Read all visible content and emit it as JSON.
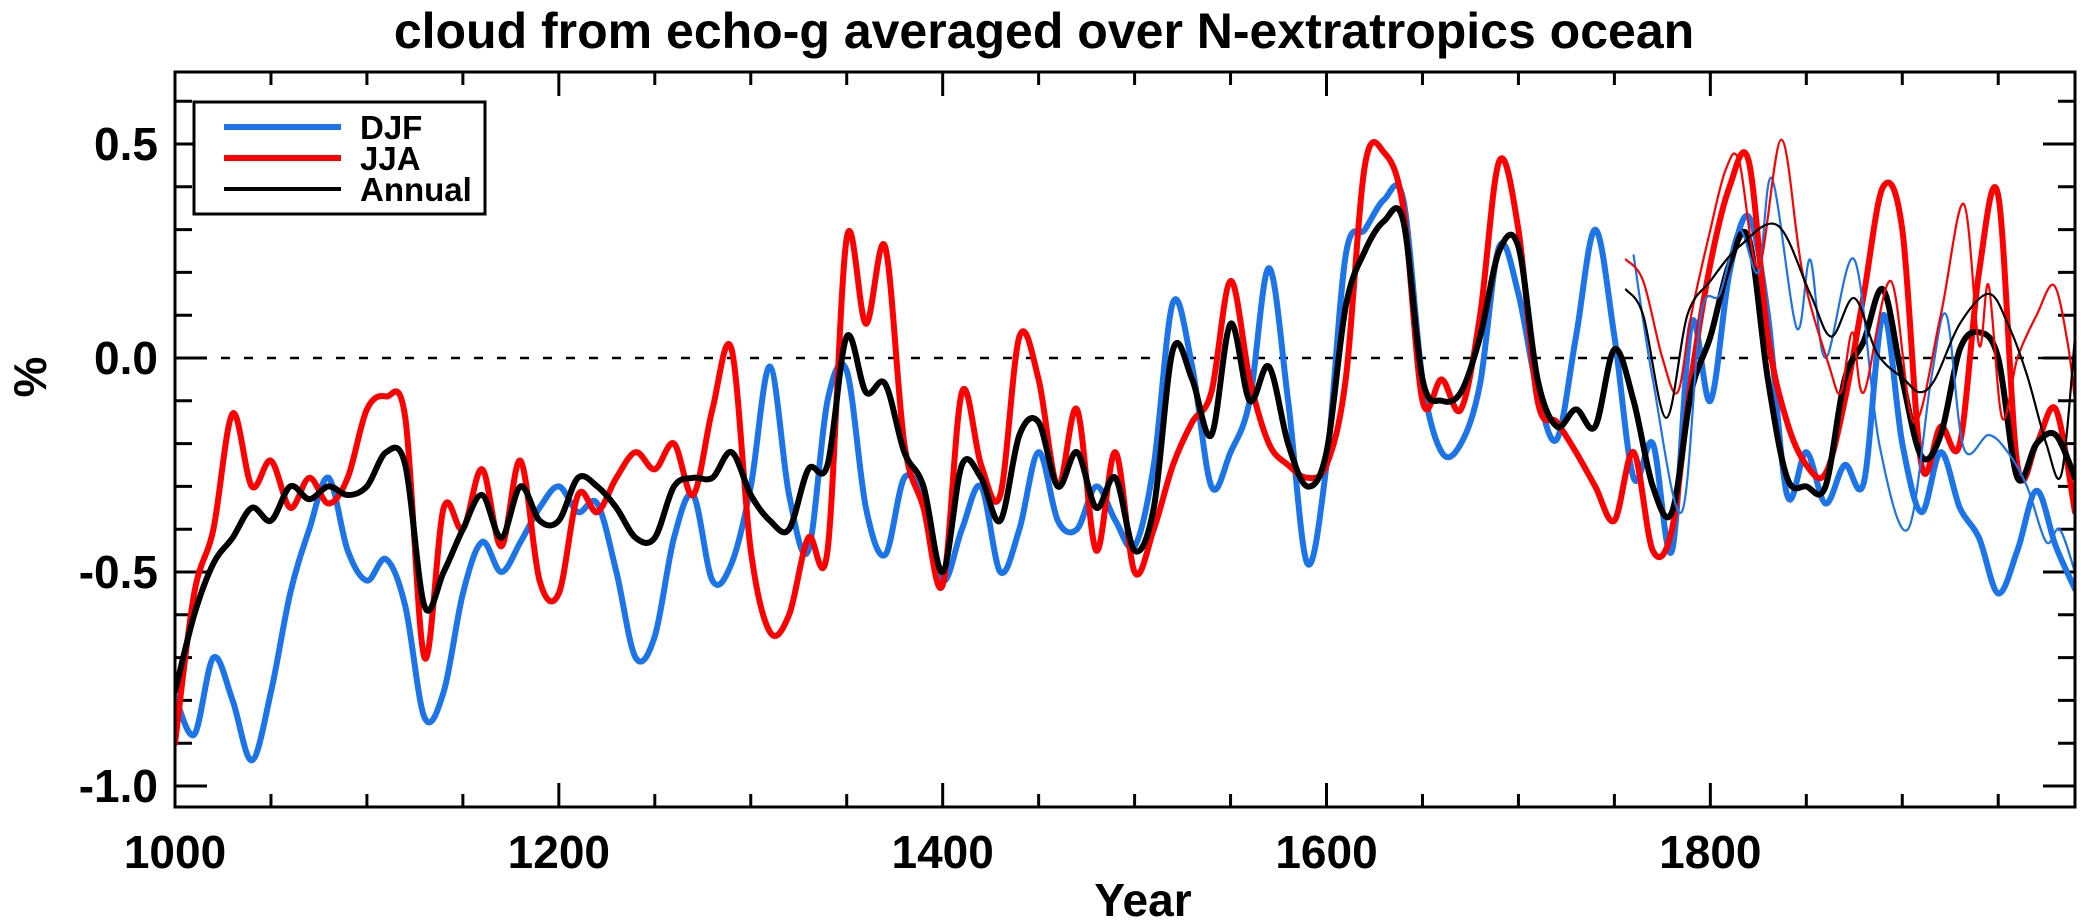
{
  "title": "cloud from echo-g averaged over N-extratropics ocean",
  "axes": {
    "xlabel": "Year",
    "ylabel": "%",
    "x_range": [
      1000,
      1990
    ],
    "x_major_ticks": [
      1000,
      1200,
      1400,
      1600,
      1800
    ],
    "x_major_labels": [
      "1000",
      "1200",
      "1400",
      "1600",
      "1800"
    ],
    "x_minor_step": 50,
    "y_range": [
      -1.049,
      0.668
    ],
    "y_major_ticks": [
      0.5,
      0.0,
      -0.5,
      -1.0
    ],
    "y_major_labels": [
      "0.5",
      "0.0",
      "-0.5",
      "-1.0"
    ],
    "y_minor_step": 0.1,
    "zero_reference_line": 0.0,
    "grid": "off",
    "frame": "boxed with inward ticks on all four sides"
  },
  "legend": {
    "position": "top-left inside plot",
    "items": [
      {
        "label": "DJF",
        "color": "#1B74E8",
        "weight": "thick"
      },
      {
        "label": "JJA",
        "color": "#FF0000",
        "weight": "thick"
      },
      {
        "label": "Annual",
        "color": "#000000",
        "weight": "thick"
      }
    ]
  },
  "colors": {
    "djf": "#1B74E8",
    "jja": "#FF0000",
    "annual": "#000000",
    "frame": "#000000",
    "background": "#FFFFFF"
  },
  "chart_data": {
    "type": "line",
    "title": "cloud from echo-g averaged over N-extratropics ocean",
    "xlabel": "Year",
    "ylabel": "%",
    "xlim": [
      1000,
      1990
    ],
    "ylim": [
      -1.049,
      0.668
    ],
    "legend_position": "upper left",
    "description": "Cloud-cover anomaly (%) from the ECHO-G millennium simulation averaged over Northern-extratropics ocean; ~30-yr smoothed seasonal (DJF, JJA) and Annual means. Thin lines from ~1755 onward show a second (historical) realization.",
    "series": [
      {
        "name": "DJF",
        "style": "thick",
        "color": "#1B74E8",
        "x_start": 1000,
        "x_step": 10,
        "values": [
          -0.79,
          -0.88,
          -0.7,
          -0.8,
          -0.94,
          -0.78,
          -0.55,
          -0.4,
          -0.28,
          -0.45,
          -0.52,
          -0.47,
          -0.58,
          -0.84,
          -0.78,
          -0.55,
          -0.43,
          -0.5,
          -0.43,
          -0.35,
          -0.3,
          -0.36,
          -0.34,
          -0.5,
          -0.7,
          -0.65,
          -0.42,
          -0.32,
          -0.52,
          -0.48,
          -0.3,
          -0.02,
          -0.32,
          -0.45,
          -0.1,
          -0.03,
          -0.35,
          -0.46,
          -0.28,
          -0.33,
          -0.52,
          -0.4,
          -0.3,
          -0.5,
          -0.4,
          -0.22,
          -0.38,
          -0.4,
          -0.3,
          -0.38,
          -0.44,
          -0.25,
          0.13,
          -0.02,
          -0.3,
          -0.22,
          -0.1,
          0.21,
          -0.1,
          -0.48,
          -0.25,
          0.24,
          0.3,
          0.37,
          0.37,
          -0.05,
          -0.22,
          -0.2,
          -0.06,
          0.26,
          0.15,
          -0.08,
          -0.19,
          0.05,
          0.3,
          0.05,
          -0.28,
          -0.2,
          -0.45,
          0.08,
          -0.1,
          0.2,
          0.33,
          0.1,
          -0.32,
          -0.22,
          -0.34,
          -0.25,
          -0.29,
          0.1,
          -0.2,
          -0.36,
          -0.22,
          -0.35,
          -0.42,
          -0.55,
          -0.45,
          -0.31,
          -0.44,
          -0.54
        ]
      },
      {
        "name": "JJA",
        "style": "thick",
        "color": "#FF0000",
        "x_start": 1000,
        "x_step": 10,
        "values": [
          -0.9,
          -0.55,
          -0.4,
          -0.13,
          -0.3,
          -0.24,
          -0.35,
          -0.28,
          -0.34,
          -0.28,
          -0.12,
          -0.09,
          -0.14,
          -0.7,
          -0.35,
          -0.4,
          -0.26,
          -0.44,
          -0.24,
          -0.52,
          -0.55,
          -0.32,
          -0.36,
          -0.28,
          -0.22,
          -0.26,
          -0.2,
          -0.32,
          -0.12,
          0.02,
          -0.45,
          -0.64,
          -0.6,
          -0.42,
          -0.45,
          0.28,
          0.08,
          0.26,
          -0.2,
          -0.35,
          -0.53,
          -0.08,
          -0.25,
          -0.32,
          0.05,
          -0.05,
          -0.3,
          -0.12,
          -0.45,
          -0.22,
          -0.5,
          -0.4,
          -0.25,
          -0.15,
          -0.08,
          0.18,
          -0.05,
          -0.2,
          -0.25,
          -0.28,
          -0.25,
          -0.05,
          0.45,
          0.48,
          0.35,
          -0.1,
          -0.05,
          -0.12,
          0.1,
          0.46,
          0.3,
          -0.1,
          -0.15,
          -0.22,
          -0.3,
          -0.38,
          -0.22,
          -0.45,
          -0.4,
          -0.05,
          0.22,
          0.4,
          0.46,
          0.05,
          -0.15,
          -0.25,
          -0.27,
          -0.1,
          0.15,
          0.4,
          0.3,
          -0.25,
          -0.16,
          -0.2,
          0.2,
          0.38,
          -0.25,
          -0.2,
          -0.12,
          -0.36
        ]
      },
      {
        "name": "Annual",
        "style": "thick",
        "color": "#000000",
        "x_start": 1000,
        "x_step": 10,
        "values": [
          -0.78,
          -0.6,
          -0.48,
          -0.42,
          -0.35,
          -0.38,
          -0.3,
          -0.33,
          -0.3,
          -0.32,
          -0.3,
          -0.22,
          -0.25,
          -0.58,
          -0.5,
          -0.4,
          -0.32,
          -0.42,
          -0.3,
          -0.38,
          -0.38,
          -0.28,
          -0.3,
          -0.35,
          -0.42,
          -0.42,
          -0.3,
          -0.28,
          -0.28,
          -0.22,
          -0.32,
          -0.38,
          -0.4,
          -0.26,
          -0.25,
          0.05,
          -0.08,
          -0.06,
          -0.22,
          -0.3,
          -0.5,
          -0.25,
          -0.28,
          -0.38,
          -0.18,
          -0.15,
          -0.3,
          -0.22,
          -0.35,
          -0.28,
          -0.45,
          -0.35,
          0.02,
          -0.05,
          -0.18,
          0.08,
          -0.1,
          -0.02,
          -0.2,
          -0.3,
          -0.22,
          0.12,
          0.25,
          0.32,
          0.32,
          -0.05,
          -0.1,
          -0.08,
          0.05,
          0.25,
          0.26,
          -0.05,
          -0.16,
          -0.12,
          -0.16,
          0.02,
          -0.1,
          -0.3,
          -0.36,
          -0.08,
          0.05,
          0.22,
          0.28,
          -0.05,
          -0.28,
          -0.3,
          -0.3,
          -0.05,
          0.04,
          0.16,
          -0.05,
          -0.23,
          -0.18,
          0.02,
          0.06,
          0.0,
          -0.28,
          -0.2,
          -0.18,
          -0.28
        ]
      },
      {
        "name": "DJF (thin, second realization)",
        "style": "thin",
        "color": "#1B74E8",
        "points": [
          [
            1760,
            0.24
          ],
          [
            1770,
            -0.05
          ],
          [
            1785,
            -0.36
          ],
          [
            1795,
            0.1
          ],
          [
            1805,
            0.15
          ],
          [
            1815,
            0.3
          ],
          [
            1825,
            0.2
          ],
          [
            1832,
            0.42
          ],
          [
            1845,
            0.07
          ],
          [
            1852,
            0.23
          ],
          [
            1860,
            0.0
          ],
          [
            1875,
            0.23
          ],
          [
            1888,
            -0.2
          ],
          [
            1903,
            -0.4
          ],
          [
            1915,
            -0.05
          ],
          [
            1923,
            0.1
          ],
          [
            1932,
            -0.21
          ],
          [
            1945,
            -0.18
          ],
          [
            1955,
            -0.22
          ],
          [
            1965,
            -0.3
          ],
          [
            1975,
            -0.43
          ],
          [
            1982,
            -0.4
          ],
          [
            1990,
            -0.5
          ]
        ]
      },
      {
        "name": "JJA (thin, second realization)",
        "style": "thin",
        "color": "#FF0000",
        "points": [
          [
            1756,
            0.23
          ],
          [
            1765,
            0.18
          ],
          [
            1775,
            0.0
          ],
          [
            1783,
            -0.08
          ],
          [
            1790,
            0.1
          ],
          [
            1800,
            0.3
          ],
          [
            1808,
            0.44
          ],
          [
            1815,
            0.46
          ],
          [
            1825,
            0.21
          ],
          [
            1837,
            0.51
          ],
          [
            1848,
            0.2
          ],
          [
            1862,
            -0.02
          ],
          [
            1868,
            -0.08
          ],
          [
            1874,
            0.06
          ],
          [
            1880,
            -0.08
          ],
          [
            1894,
            0.18
          ],
          [
            1906,
            -0.15
          ],
          [
            1920,
            0.1
          ],
          [
            1932,
            0.36
          ],
          [
            1940,
            0.03
          ],
          [
            1945,
            0.17
          ],
          [
            1952,
            -0.14
          ],
          [
            1960,
            0.0
          ],
          [
            1970,
            0.1
          ],
          [
            1979,
            0.17
          ],
          [
            1986,
            0.04
          ],
          [
            1990,
            -0.1
          ]
        ]
      },
      {
        "name": "Annual (thin, second realization)",
        "style": "thin",
        "color": "#000000",
        "points": [
          [
            1756,
            0.16
          ],
          [
            1765,
            0.1
          ],
          [
            1777,
            -0.14
          ],
          [
            1788,
            0.1
          ],
          [
            1800,
            0.18
          ],
          [
            1815,
            0.26
          ],
          [
            1835,
            0.31
          ],
          [
            1852,
            0.15
          ],
          [
            1863,
            0.05
          ],
          [
            1875,
            0.14
          ],
          [
            1887,
            0.01
          ],
          [
            1901,
            -0.05
          ],
          [
            1909,
            -0.08
          ],
          [
            1917,
            -0.05
          ],
          [
            1930,
            0.08
          ],
          [
            1945,
            0.15
          ],
          [
            1955,
            0.08
          ],
          [
            1965,
            -0.04
          ],
          [
            1975,
            -0.2
          ],
          [
            1983,
            -0.27
          ],
          [
            1990,
            0.05
          ]
        ]
      }
    ]
  }
}
